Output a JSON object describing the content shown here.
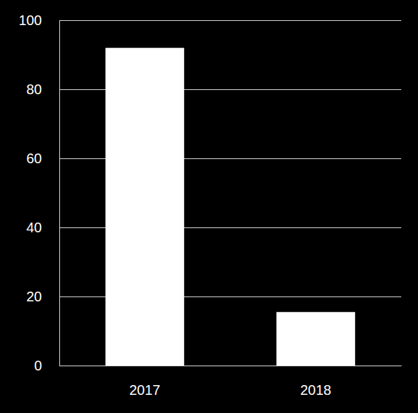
{
  "chart_data": {
    "type": "bar",
    "categories": [
      "2017",
      "2018"
    ],
    "values": [
      92,
      15.5
    ],
    "color": "#ffffff",
    "ylim": [
      0,
      100
    ],
    "yticks": [
      0,
      20,
      40,
      60,
      80,
      100
    ],
    "grid": true
  }
}
